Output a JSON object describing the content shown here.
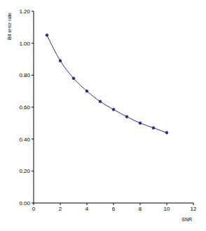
{
  "chart_data": {
    "type": "line",
    "x_label": "SNR",
    "y_label": "Bit error rate",
    "series": [
      {
        "name": "Bit error rate",
        "color": "#2b2b8c",
        "marker": "circle",
        "line_style": "solid",
        "x": [
          1,
          2,
          3,
          4,
          5,
          6,
          7,
          8,
          9,
          10
        ],
        "values": [
          1.05,
          0.89,
          0.78,
          0.7,
          0.635,
          0.585,
          0.54,
          0.5,
          0.47,
          0.44
        ]
      }
    ],
    "xlim": [
      0,
      12
    ],
    "xticks": [
      0,
      2,
      4,
      6,
      8,
      10,
      12
    ],
    "ylim": [
      0,
      1.2
    ],
    "yticks": [
      {
        "value": 0,
        "label": "0.00"
      },
      {
        "value": 0.2,
        "label": "0.20"
      },
      {
        "value": 0.4,
        "label": "0.40"
      },
      {
        "value": 0.6,
        "label": "0.60"
      },
      {
        "value": 0.8,
        "label": "0.80"
      },
      {
        "value": 1,
        "label": "1.00"
      },
      {
        "value": 1.2,
        "label": "1.20"
      }
    ],
    "grid": false
  }
}
